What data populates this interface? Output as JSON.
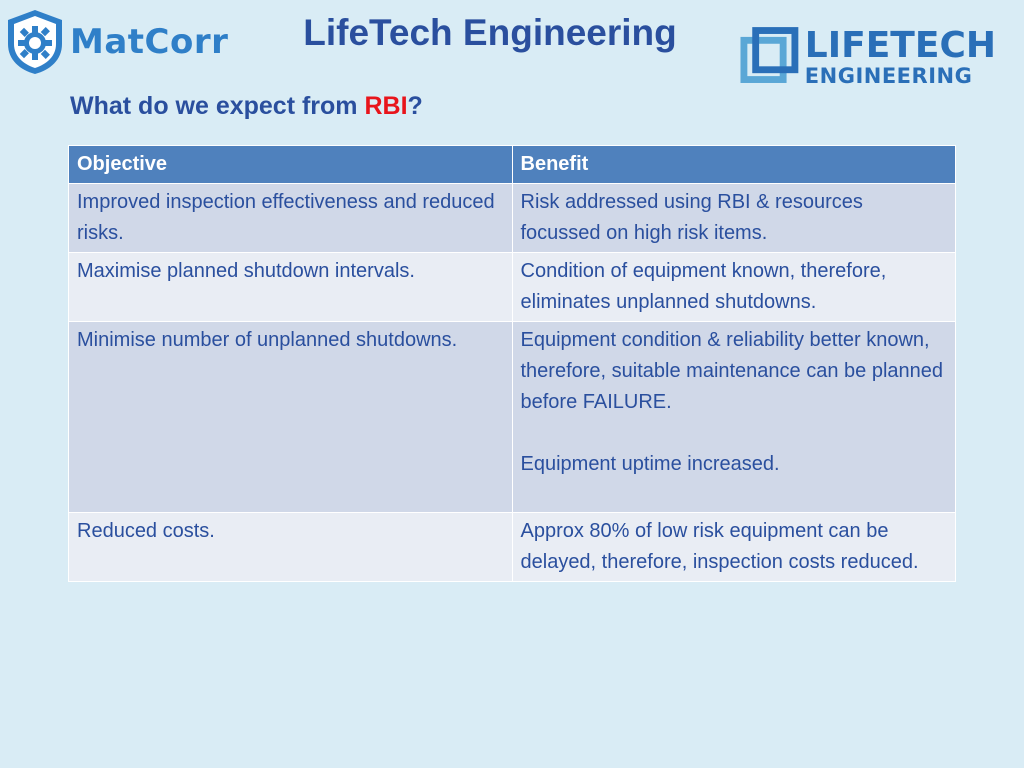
{
  "header": {
    "title": "LifeTech Engineering",
    "left_logo_text": "MatCorr",
    "right_logo_line1": "LIFETECH",
    "right_logo_line2": "ENGINEERING"
  },
  "subtitle": {
    "prefix": "What do we expect from ",
    "highlight": "RBI",
    "suffix": "?"
  },
  "table": {
    "headers": [
      "Objective",
      "Benefit"
    ],
    "rows": [
      {
        "objective": "Improved inspection effectiveness and reduced risks.",
        "benefit": "Risk addressed using RBI & resources focussed on high risk items."
      },
      {
        "objective": "Maximise planned shutdown intervals.",
        "benefit": "Condition of equipment known, therefore, eliminates unplanned shutdowns."
      },
      {
        "objective": "Minimise number of unplanned shutdowns.",
        "benefit": "Equipment condition & reliability better known, therefore, suitable maintenance can be planned before FAILURE.",
        "benefit_extra": "Equipment uptime increased."
      },
      {
        "objective": "Reduced costs.",
        "benefit": "Approx 80% of low risk equipment can be delayed, therefore, inspection costs reduced."
      }
    ]
  },
  "colors": {
    "background": "#d9ecf5",
    "title_blue": "#2a4f9e",
    "highlight_red": "#e8141b",
    "header_row": "#4f81bd",
    "row_dark": "#d0d8e8",
    "row_light": "#e9edf4"
  },
  "icons": {
    "left_logo": "gear-shield-logo-icon",
    "right_logo": "lifetech-square-logo-icon"
  }
}
